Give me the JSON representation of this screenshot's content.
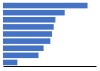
{
  "chart_data": {
    "type": "bar",
    "orientation": "horizontal",
    "categories": [
      null,
      null,
      null,
      null,
      null,
      null,
      null,
      null,
      null
    ],
    "values": [
      100,
      73,
      62,
      60,
      58,
      56,
      48,
      42,
      17
    ],
    "color": "#4472c4",
    "xlim": [
      0,
      110
    ],
    "tick_labels": false
  }
}
